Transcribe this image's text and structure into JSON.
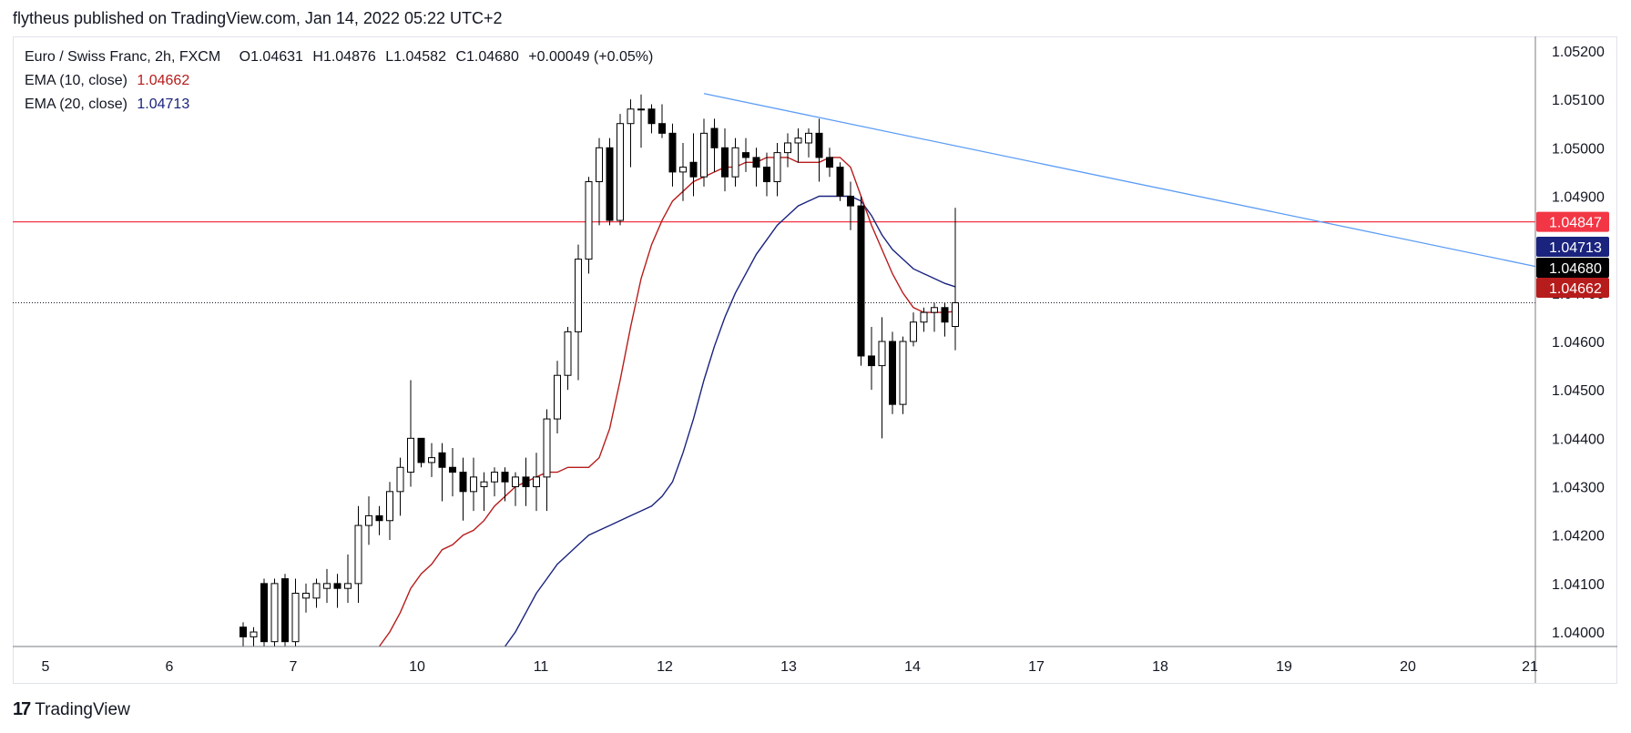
{
  "publisher_line": "flytheus published on TradingView.com, Jan 14, 2022 05:22 UTC+2",
  "brand": {
    "logo": "17",
    "name": "TradingView"
  },
  "legend": {
    "symbol": "Euro / Swiss Franc, 2h, FXCM",
    "open_key": "O",
    "open": "1.04631",
    "high_key": "H",
    "high": "1.04876",
    "low_key": "L",
    "low": "1.04582",
    "close_key": "C",
    "close": "1.04680",
    "change": "+0.00049 (+0.05%)",
    "ema10_label": "EMA (10, close)",
    "ema10_value": "1.04662",
    "ema20_label": "EMA (20, close)",
    "ema20_value": "1.04713"
  },
  "colors": {
    "up_body": "#ffffff",
    "down_body": "#000000",
    "wick": "#000000",
    "ema10": "#b71c1c",
    "ema20": "#1a237e",
    "hline": "#f23645",
    "trendline": "#5b9cf6",
    "grid_axis": "#787b86"
  },
  "chart_data": {
    "type": "candlestick",
    "title": "Euro / Swiss Franc, 2h, FXCM",
    "ylim": [
      1.0397,
      1.0523
    ],
    "y_ticks": [
      "1.05200",
      "1.05100",
      "1.05000",
      "1.04900",
      "1.04800",
      "1.04700",
      "1.04600",
      "1.04500",
      "1.04400",
      "1.04300",
      "1.04200",
      "1.04100",
      "1.04000"
    ],
    "x_tick_labels": [
      "5",
      "6",
      "7",
      "10",
      "11",
      "12",
      "13",
      "14",
      "17",
      "18",
      "19",
      "20",
      "21"
    ],
    "price_tags": [
      {
        "name": "horizontal-level",
        "value": "1.04847",
        "color": "#f23645"
      },
      {
        "name": "ema20",
        "value": "1.04713",
        "color": "#1a237e"
      },
      {
        "name": "last-close",
        "value": "1.04680",
        "color": "#000000"
      },
      {
        "name": "ema10",
        "value": "1.04662",
        "color": "#b71c1c"
      }
    ],
    "horizontal_line": 1.04847,
    "last_price": 1.0468,
    "trendline": {
      "from": {
        "bar": 44,
        "price": 1.05112
      },
      "to": {
        "bar": 133,
        "price": 1.04755
      }
    },
    "candles": [
      {
        "o": 1.0401,
        "h": 1.0402,
        "l": 1.0397,
        "c": 1.0399
      },
      {
        "o": 1.0399,
        "h": 1.0401,
        "l": 1.0397,
        "c": 1.04
      },
      {
        "o": 1.041,
        "h": 1.0411,
        "l": 1.0397,
        "c": 1.0398
      },
      {
        "o": 1.0398,
        "h": 1.0411,
        "l": 1.0397,
        "c": 1.041
      },
      {
        "o": 1.0411,
        "h": 1.0412,
        "l": 1.0397,
        "c": 1.0398
      },
      {
        "o": 1.0398,
        "h": 1.0411,
        "l": 1.0397,
        "c": 1.0408
      },
      {
        "o": 1.0407,
        "h": 1.041,
        "l": 1.0404,
        "c": 1.0408
      },
      {
        "o": 1.0407,
        "h": 1.0411,
        "l": 1.0405,
        "c": 1.041
      },
      {
        "o": 1.0409,
        "h": 1.0413,
        "l": 1.0406,
        "c": 1.041
      },
      {
        "o": 1.041,
        "h": 1.0412,
        "l": 1.0405,
        "c": 1.0409
      },
      {
        "o": 1.0409,
        "h": 1.0416,
        "l": 1.0406,
        "c": 1.041
      },
      {
        "o": 1.041,
        "h": 1.0426,
        "l": 1.0406,
        "c": 1.0422
      },
      {
        "o": 1.0422,
        "h": 1.0428,
        "l": 1.0418,
        "c": 1.0424
      },
      {
        "o": 1.0424,
        "h": 1.0426,
        "l": 1.042,
        "c": 1.0423
      },
      {
        "o": 1.0423,
        "h": 1.0431,
        "l": 1.0419,
        "c": 1.0429
      },
      {
        "o": 1.0429,
        "h": 1.0436,
        "l": 1.0424,
        "c": 1.0434
      },
      {
        "o": 1.0433,
        "h": 1.0452,
        "l": 1.043,
        "c": 1.044
      },
      {
        "o": 1.044,
        "h": 1.044,
        "l": 1.0434,
        "c": 1.0435
      },
      {
        "o": 1.0435,
        "h": 1.0439,
        "l": 1.0432,
        "c": 1.0436
      },
      {
        "o": 1.0437,
        "h": 1.0439,
        "l": 1.0427,
        "c": 1.0434
      },
      {
        "o": 1.0434,
        "h": 1.0438,
        "l": 1.0428,
        "c": 1.0433
      },
      {
        "o": 1.0433,
        "h": 1.0436,
        "l": 1.0423,
        "c": 1.0429
      },
      {
        "o": 1.0429,
        "h": 1.0436,
        "l": 1.0425,
        "c": 1.0432
      },
      {
        "o": 1.043,
        "h": 1.0433,
        "l": 1.0425,
        "c": 1.0431
      },
      {
        "o": 1.0431,
        "h": 1.0434,
        "l": 1.0428,
        "c": 1.0433
      },
      {
        "o": 1.0433,
        "h": 1.0434,
        "l": 1.0427,
        "c": 1.0431
      },
      {
        "o": 1.043,
        "h": 1.0433,
        "l": 1.0426,
        "c": 1.0432
      },
      {
        "o": 1.0432,
        "h": 1.0436,
        "l": 1.0426,
        "c": 1.043
      },
      {
        "o": 1.043,
        "h": 1.0437,
        "l": 1.0425,
        "c": 1.0432
      },
      {
        "o": 1.0432,
        "h": 1.0446,
        "l": 1.0425,
        "c": 1.0444
      },
      {
        "o": 1.0444,
        "h": 1.0456,
        "l": 1.0441,
        "c": 1.0453
      },
      {
        "o": 1.0453,
        "h": 1.0463,
        "l": 1.045,
        "c": 1.0462
      },
      {
        "o": 1.0462,
        "h": 1.048,
        "l": 1.0452,
        "c": 1.0477
      },
      {
        "o": 1.0477,
        "h": 1.0494,
        "l": 1.0474,
        "c": 1.0493
      },
      {
        "o": 1.0493,
        "h": 1.0502,
        "l": 1.0484,
        "c": 1.05
      },
      {
        "o": 1.05,
        "h": 1.0502,
        "l": 1.0484,
        "c": 1.0485
      },
      {
        "o": 1.0485,
        "h": 1.0507,
        "l": 1.0484,
        "c": 1.0505
      },
      {
        "o": 1.0505,
        "h": 1.051,
        "l": 1.0496,
        "c": 1.0508
      },
      {
        "o": 1.0508,
        "h": 1.0511,
        "l": 1.05,
        "c": 1.0508
      },
      {
        "o": 1.0508,
        "h": 1.0509,
        "l": 1.0503,
        "c": 1.0505
      },
      {
        "o": 1.0505,
        "h": 1.0509,
        "l": 1.0502,
        "c": 1.0503
      },
      {
        "o": 1.0503,
        "h": 1.0505,
        "l": 1.0492,
        "c": 1.0495
      },
      {
        "o": 1.0495,
        "h": 1.0501,
        "l": 1.0489,
        "c": 1.0496
      },
      {
        "o": 1.0497,
        "h": 1.0503,
        "l": 1.049,
        "c": 1.0494
      },
      {
        "o": 1.0494,
        "h": 1.0506,
        "l": 1.0492,
        "c": 1.0503
      },
      {
        "o": 1.0504,
        "h": 1.0506,
        "l": 1.0495,
        "c": 1.05
      },
      {
        "o": 1.05,
        "h": 1.0504,
        "l": 1.0491,
        "c": 1.0494
      },
      {
        "o": 1.0494,
        "h": 1.0502,
        "l": 1.0492,
        "c": 1.05
      },
      {
        "o": 1.0499,
        "h": 1.0502,
        "l": 1.0495,
        "c": 1.0498
      },
      {
        "o": 1.0498,
        "h": 1.05,
        "l": 1.0492,
        "c": 1.0496
      },
      {
        "o": 1.0496,
        "h": 1.0499,
        "l": 1.049,
        "c": 1.0493
      },
      {
        "o": 1.0493,
        "h": 1.0501,
        "l": 1.049,
        "c": 1.0499
      },
      {
        "o": 1.0499,
        "h": 1.0503,
        "l": 1.0496,
        "c": 1.0501
      },
      {
        "o": 1.0501,
        "h": 1.0504,
        "l": 1.0497,
        "c": 1.0502
      },
      {
        "o": 1.0501,
        "h": 1.0504,
        "l": 1.0498,
        "c": 1.0503
      },
      {
        "o": 1.0503,
        "h": 1.0506,
        "l": 1.0493,
        "c": 1.0498
      },
      {
        "o": 1.0498,
        "h": 1.05,
        "l": 1.0494,
        "c": 1.0496
      },
      {
        "o": 1.0496,
        "h": 1.0497,
        "l": 1.0489,
        "c": 1.049
      },
      {
        "o": 1.049,
        "h": 1.0493,
        "l": 1.0483,
        "c": 1.0488
      },
      {
        "o": 1.0488,
        "h": 1.049,
        "l": 1.0455,
        "c": 1.0457
      },
      {
        "o": 1.0457,
        "h": 1.0463,
        "l": 1.045,
        "c": 1.0455
      },
      {
        "o": 1.0455,
        "h": 1.0465,
        "l": 1.044,
        "c": 1.046
      },
      {
        "o": 1.046,
        "h": 1.0462,
        "l": 1.0445,
        "c": 1.0447
      },
      {
        "o": 1.0447,
        "h": 1.0461,
        "l": 1.0445,
        "c": 1.046
      },
      {
        "o": 1.046,
        "h": 1.0466,
        "l": 1.0459,
        "c": 1.0464
      },
      {
        "o": 1.0464,
        "h": 1.0467,
        "l": 1.0462,
        "c": 1.0466
      },
      {
        "o": 1.0466,
        "h": 1.0468,
        "l": 1.0462,
        "c": 1.0467
      },
      {
        "o": 1.0467,
        "h": 1.0468,
        "l": 1.0461,
        "c": 1.0464
      },
      {
        "o": 1.04631,
        "h": 1.04876,
        "l": 1.04582,
        "c": 1.0468
      }
    ],
    "ema10": [
      1.0397,
      1.04,
      1.0404,
      1.0409,
      1.0412,
      1.0414,
      1.0417,
      1.0418,
      1.042,
      1.0421,
      1.0423,
      1.0426,
      1.0428,
      1.043,
      1.0431,
      1.0432,
      1.0433,
      1.0433,
      1.0434,
      1.0434,
      1.0434,
      1.0436,
      1.0442,
      1.0452,
      1.0463,
      1.0473,
      1.048,
      1.0485,
      1.0489,
      1.0491,
      1.0493,
      1.0494,
      1.0495,
      1.0496,
      1.0496,
      1.0497,
      1.0497,
      1.0498,
      1.0498,
      1.0498,
      1.0497,
      1.0497,
      1.0497,
      1.0498,
      1.0498,
      1.0496,
      1.049,
      1.0484,
      1.0479,
      1.0474,
      1.047,
      1.0467,
      1.0466,
      1.0466,
      1.0466,
      1.04662
    ],
    "ema20": [
      1.0397,
      1.04,
      1.0404,
      1.0408,
      1.0411,
      1.0414,
      1.0416,
      1.0418,
      1.042,
      1.0421,
      1.0422,
      1.0423,
      1.0424,
      1.0425,
      1.0426,
      1.0428,
      1.0431,
      1.0437,
      1.0444,
      1.0452,
      1.0459,
      1.0465,
      1.047,
      1.0474,
      1.0478,
      1.0481,
      1.0484,
      1.0486,
      1.0488,
      1.0489,
      1.049,
      1.049,
      1.049,
      1.049,
      1.0489,
      1.0486,
      1.0482,
      1.0479,
      1.0477,
      1.0475,
      1.0474,
      1.0473,
      1.0472,
      1.04713
    ]
  }
}
